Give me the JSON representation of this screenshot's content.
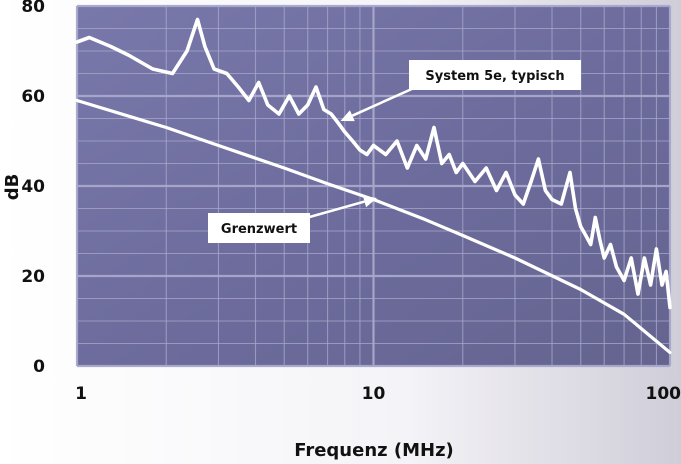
{
  "chart_data": {
    "type": "line",
    "xlabel": "Frequenz (MHz)",
    "ylabel": "dB",
    "x_scale": "log",
    "xlim": [
      1,
      100
    ],
    "ylim": [
      0,
      80
    ],
    "x_ticks": [
      "1",
      "10",
      "100"
    ],
    "y_ticks": [
      "0",
      "20",
      "40",
      "60",
      "80"
    ],
    "grid": true,
    "colors": {
      "plot_background": "#6f6ea0",
      "grid": "#a9a8cc",
      "lines": "#ffffff"
    },
    "series": [
      {
        "name": "System 5e, typisch",
        "x": [
          1,
          1.1,
          1.3,
          1.5,
          1.8,
          2.1,
          2.35,
          2.55,
          2.7,
          2.9,
          3.2,
          3.5,
          3.8,
          4.1,
          4.4,
          4.8,
          5.2,
          5.6,
          6.0,
          6.4,
          6.8,
          7.2,
          7.6,
          8.0,
          8.5,
          9.0,
          9.5,
          10,
          11,
          12,
          13,
          14,
          15,
          16,
          17,
          18,
          19,
          20,
          22,
          24,
          26,
          28,
          30,
          32,
          34,
          36,
          38,
          40,
          43,
          46,
          48,
          50,
          52,
          54,
          56,
          58,
          60,
          63,
          66,
          70,
          74,
          78,
          82,
          86,
          90,
          94,
          97,
          100
        ],
        "values": [
          72,
          73,
          71,
          69,
          66,
          65,
          70,
          77,
          71,
          66,
          65,
          62,
          59,
          63,
          58,
          56,
          60,
          56,
          58,
          62,
          57,
          56,
          54,
          52,
          50,
          48,
          47,
          49,
          47,
          50,
          44,
          49,
          46,
          53,
          45,
          47,
          43,
          45,
          41,
          44,
          39,
          43,
          38,
          36,
          41,
          46,
          39,
          37,
          36,
          43,
          35,
          31,
          29,
          27,
          33,
          28,
          24,
          27,
          22,
          19,
          24,
          16,
          24,
          18,
          26,
          18,
          21,
          13
        ]
      },
      {
        "name": "Grenzwert",
        "x": [
          1,
          1.5,
          2,
          3,
          5,
          7,
          10,
          15,
          20,
          30,
          50,
          70,
          100
        ],
        "values": [
          59,
          55.5,
          53,
          49,
          44,
          40.5,
          37,
          32.5,
          29,
          24,
          17,
          11.5,
          3
        ]
      }
    ],
    "annotations": [
      {
        "text": "System 5e, typisch",
        "points_to": [
          7.5,
          54
        ]
      },
      {
        "text": "Grenzwert",
        "points_to": [
          12,
          40
        ]
      }
    ]
  }
}
